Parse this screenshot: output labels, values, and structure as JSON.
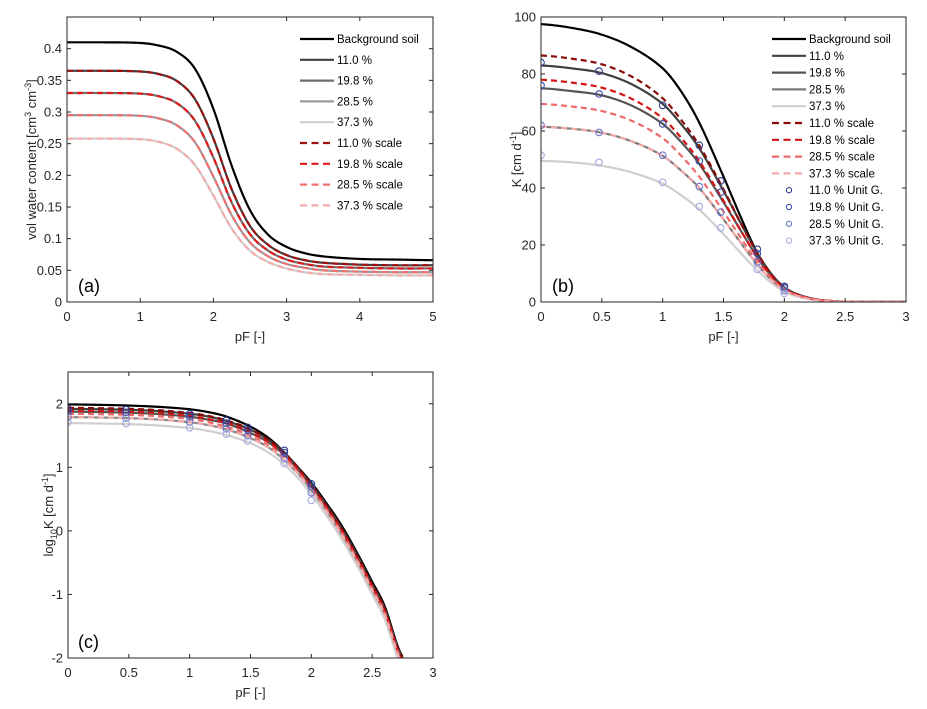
{
  "chart_data": [
    {
      "id": "a",
      "type": "line",
      "panel_label": "(a)",
      "xlabel": "pF [-]",
      "ylabel": "vol water content [cm³ cm⁻³]",
      "ylabel_parts": {
        "pre": "vol water content [cm",
        "sup1": "3",
        "mid": " cm",
        "sup2": "-3",
        "post": "]"
      },
      "xlim": [
        0,
        5
      ],
      "ylim": [
        0,
        0.45
      ],
      "xticks": [
        0,
        1,
        2,
        3,
        4,
        5
      ],
      "xtick_labels": [
        "0",
        "1",
        "2",
        "3",
        "4",
        "5"
      ],
      "yticks": [
        0,
        0.05,
        0.1,
        0.15,
        0.2,
        0.25,
        0.3,
        0.35,
        0.4
      ],
      "ytick_labels": [
        "0",
        "0.05",
        "0.1",
        "0.15",
        "0.2",
        "0.25",
        "0.3",
        "0.35",
        "0.4"
      ],
      "grid": false,
      "legend_position": "top-right",
      "x": [
        0,
        0.5,
        1,
        1.25,
        1.5,
        1.75,
        2,
        2.25,
        2.5,
        2.75,
        3,
        3.25,
        3.5,
        4,
        4.5,
        5
      ],
      "series": [
        {
          "name": "Background soil",
          "style": "solid",
          "color": "#000000",
          "values": [
            0.41,
            0.41,
            0.409,
            0.405,
            0.395,
            0.368,
            0.305,
            0.215,
            0.145,
            0.106,
            0.087,
            0.077,
            0.072,
            0.068,
            0.067,
            0.066
          ]
        },
        {
          "name": "11.0 %",
          "style": "solid",
          "color": "#404040",
          "values": [
            0.365,
            0.365,
            0.364,
            0.36,
            0.349,
            0.32,
            0.258,
            0.178,
            0.12,
            0.09,
            0.074,
            0.066,
            0.062,
            0.059,
            0.058,
            0.058
          ]
        },
        {
          "name": "19.8 %",
          "style": "solid",
          "color": "#6e6e6e",
          "values": [
            0.33,
            0.33,
            0.329,
            0.325,
            0.314,
            0.286,
            0.228,
            0.157,
            0.107,
            0.081,
            0.067,
            0.06,
            0.056,
            0.054,
            0.053,
            0.053
          ]
        },
        {
          "name": "28.5 %",
          "style": "solid",
          "color": "#9a9a9a",
          "values": [
            0.295,
            0.295,
            0.294,
            0.29,
            0.279,
            0.252,
            0.198,
            0.137,
            0.094,
            0.072,
            0.06,
            0.054,
            0.05,
            0.048,
            0.047,
            0.047
          ]
        },
        {
          "name": "37.3 %",
          "style": "solid",
          "color": "#cfcfcf",
          "values": [
            0.258,
            0.258,
            0.257,
            0.253,
            0.242,
            0.216,
            0.168,
            0.116,
            0.081,
            0.063,
            0.053,
            0.047,
            0.044,
            0.043,
            0.042,
            0.042
          ]
        },
        {
          "name": "11.0 % scale",
          "style": "dashed",
          "color": "#a01010",
          "values": [
            0.365,
            0.365,
            0.364,
            0.36,
            0.349,
            0.32,
            0.258,
            0.178,
            0.12,
            0.09,
            0.074,
            0.066,
            0.062,
            0.059,
            0.058,
            0.058
          ]
        },
        {
          "name": "19.8 % scale",
          "style": "dashed",
          "color": "#e01818",
          "values": [
            0.33,
            0.33,
            0.329,
            0.325,
            0.314,
            0.286,
            0.228,
            0.157,
            0.107,
            0.081,
            0.067,
            0.06,
            0.056,
            0.054,
            0.053,
            0.053
          ]
        },
        {
          "name": "28.5 % scale",
          "style": "dashed",
          "color": "#f07070",
          "values": [
            0.295,
            0.295,
            0.294,
            0.29,
            0.279,
            0.252,
            0.198,
            0.137,
            0.094,
            0.072,
            0.06,
            0.054,
            0.05,
            0.048,
            0.047,
            0.047
          ]
        },
        {
          "name": "37.3 % scale",
          "style": "dashed",
          "color": "#f5aaaa",
          "values": [
            0.258,
            0.258,
            0.257,
            0.253,
            0.242,
            0.216,
            0.168,
            0.116,
            0.081,
            0.063,
            0.053,
            0.047,
            0.044,
            0.043,
            0.042,
            0.042
          ]
        }
      ]
    },
    {
      "id": "b",
      "type": "line",
      "panel_label": "(b)",
      "xlabel": "pF [-]",
      "ylabel": "K [cm d⁻¹]",
      "ylabel_parts": {
        "pre": "K [cm d",
        "sup1": "-1",
        "post": "]"
      },
      "xlim": [
        0,
        3
      ],
      "ylim": [
        0,
        100
      ],
      "xticks": [
        0,
        0.5,
        1,
        1.5,
        2,
        2.5,
        3
      ],
      "xtick_labels": [
        "0",
        "0.5",
        "1",
        "1.5",
        "2",
        "2.5",
        "3"
      ],
      "yticks": [
        0,
        20,
        40,
        60,
        80,
        100
      ],
      "ytick_labels": [
        "0",
        "20",
        "40",
        "60",
        "80",
        "100"
      ],
      "grid": false,
      "legend_position": "top-right",
      "x": [
        0,
        0.25,
        0.5,
        0.75,
        1,
        1.15,
        1.3,
        1.5,
        1.65,
        1.78,
        1.9,
        2,
        2.1,
        2.25,
        2.4,
        2.5,
        2.75,
        3
      ],
      "series": [
        {
          "name": "Background soil",
          "style": "solid",
          "color": "#000000",
          "values": [
            97.5,
            96.2,
            93.8,
            89.3,
            82,
            74,
            63,
            44,
            29,
            17,
            9,
            5,
            2.8,
            1,
            0.3,
            0.1,
            0.01,
            0
          ]
        },
        {
          "name": "11.0 %",
          "style": "solid",
          "color": "#404040",
          "values": [
            83,
            82,
            80.3,
            76.3,
            69.5,
            62.5,
            54,
            39,
            27,
            17,
            9.5,
            5.2,
            2.8,
            1,
            0.3,
            0.1,
            0.01,
            0
          ]
        },
        {
          "name": "19.8 %",
          "style": "solid",
          "color": "#555555",
          "values": [
            75,
            74,
            72.5,
            68.8,
            62.5,
            56.2,
            48.5,
            35,
            24.5,
            15.5,
            8.8,
            4.8,
            2.6,
            0.9,
            0.3,
            0.1,
            0.01,
            0
          ]
        },
        {
          "name": "28.5 %",
          "style": "solid",
          "color": "#7a7a7a",
          "values": [
            61.5,
            60.8,
            59.4,
            56.3,
            51.3,
            46.2,
            40,
            29,
            20.3,
            13,
            7.5,
            4.2,
            2.3,
            0.8,
            0.25,
            0.1,
            0.01,
            0
          ]
        },
        {
          "name": "37.3 %",
          "style": "solid",
          "color": "#cfcfcf",
          "values": [
            49.5,
            49,
            47.8,
            45.4,
            41.5,
            37.5,
            32.5,
            23.8,
            16.8,
            11,
            6.5,
            3.6,
            2,
            0.7,
            0.2,
            0.08,
            0.01,
            0
          ]
        },
        {
          "name": "11.0 % scale",
          "style": "dashed",
          "color": "#8b0a0a",
          "values": [
            86.5,
            85.4,
            83.4,
            79,
            71.5,
            64,
            55,
            39.5,
            27,
            17,
            9.3,
            5,
            2.7,
            1,
            0.3,
            0.1,
            0.01,
            0
          ]
        },
        {
          "name": "19.8 % scale",
          "style": "dashed",
          "color": "#d41414",
          "values": [
            78,
            77,
            75.2,
            71.2,
            64.5,
            57.7,
            49.5,
            35.5,
            24.5,
            15.5,
            8.7,
            4.8,
            2.6,
            0.9,
            0.3,
            0.1,
            0.01,
            0
          ]
        },
        {
          "name": "28.5 % scale",
          "style": "dashed",
          "color": "#ee6a6a",
          "values": [
            69.5,
            68.6,
            67,
            63.5,
            57.5,
            51.4,
            44,
            31.7,
            22,
            14,
            8,
            4.4,
            2.4,
            0.85,
            0.27,
            0.1,
            0.01,
            0
          ]
        },
        {
          "name": "37.3 % scale",
          "style": "dashed",
          "color": "#f4a8a8",
          "values": [
            61.5,
            60.8,
            59.4,
            56.3,
            51.3,
            46.2,
            40,
            29,
            20.3,
            13,
            7.5,
            4.2,
            2.3,
            0.8,
            0.25,
            0.1,
            0.01,
            0
          ]
        }
      ],
      "markers": {
        "x": [
          0,
          0.477,
          1,
          1.301,
          1.477,
          1.778,
          2
        ],
        "series": [
          {
            "name": "11.0 % Unit G.",
            "color": "#2e3a8c",
            "values": [
              84,
              81,
              69,
              55,
              42.5,
              18.5,
              5.5
            ]
          },
          {
            "name": "19.8 % Unit G.",
            "color": "#3d4aa8",
            "values": [
              76,
              73,
              62.5,
              49.5,
              38.5,
              17,
              5
            ]
          },
          {
            "name": "28.5 % Unit G.",
            "color": "#6a74c8",
            "values": [
              62,
              59.5,
              51.5,
              40.5,
              31.5,
              14,
              4
            ]
          },
          {
            "name": "37.3 % Unit G.",
            "color": "#a5abe0",
            "values": [
              51.5,
              49,
              42,
              33.5,
              26,
              11.5,
              3
            ]
          }
        ]
      }
    },
    {
      "id": "c",
      "type": "line",
      "panel_label": "(c)",
      "xlabel": "pF [-]",
      "ylabel": "log₁₀K [cm d⁻¹]",
      "ylabel_parts": {
        "pre": "log",
        "sub": "10",
        "mid": "K [cm d",
        "sup1": "-1",
        "post": "]"
      },
      "xlim": [
        0,
        3
      ],
      "ylim": [
        -2,
        2.5
      ],
      "xticks": [
        0,
        0.5,
        1,
        1.5,
        2,
        2.5,
        3
      ],
      "xtick_labels": [
        "0",
        "0.5",
        "1",
        "1.5",
        "2",
        "2.5",
        "3"
      ],
      "yticks": [
        -2,
        -1,
        0,
        1,
        2
      ],
      "ytick_labels": [
        "-2",
        "-1",
        "0",
        "1",
        "2"
      ],
      "grid": false,
      "legend_position": "none",
      "x": [
        0,
        0.25,
        0.5,
        0.75,
        1,
        1.15,
        1.3,
        1.5,
        1.65,
        1.78,
        1.9,
        2,
        2.1,
        2.25,
        2.4,
        2.5,
        2.6,
        2.75
      ],
      "series": [
        {
          "name": "Background soil",
          "style": "solid",
          "color": "#000000",
          "values": [
            1.99,
            1.983,
            1.972,
            1.951,
            1.914,
            1.87,
            1.8,
            1.64,
            1.46,
            1.23,
            0.98,
            0.76,
            0.5,
            0.08,
            -0.43,
            -0.8,
            -1.17,
            -1.98
          ]
        },
        {
          "name": "11.0 %",
          "style": "solid",
          "color": "#404040",
          "values": [
            1.919,
            1.914,
            1.905,
            1.883,
            1.842,
            1.8,
            1.73,
            1.59,
            1.43,
            1.22,
            0.97,
            0.73,
            0.47,
            0.04,
            -0.47,
            -0.84,
            -1.21,
            -2.0
          ]
        },
        {
          "name": "19.8 %",
          "style": "solid",
          "color": "#555555",
          "values": [
            1.875,
            1.87,
            1.86,
            1.838,
            1.796,
            1.75,
            1.69,
            1.54,
            1.39,
            1.19,
            0.94,
            0.7,
            0.44,
            0.0,
            -0.5,
            -0.87,
            -1.24,
            -2.03
          ]
        },
        {
          "name": "28.5 %",
          "style": "solid",
          "color": "#8a8a8a",
          "values": [
            1.789,
            1.784,
            1.774,
            1.751,
            1.71,
            1.665,
            1.6,
            1.46,
            1.31,
            1.11,
            0.88,
            0.64,
            0.38,
            -0.06,
            -0.56,
            -0.93,
            -1.3,
            -2.09
          ]
        },
        {
          "name": "37.3 %",
          "style": "solid",
          "color": "#cfcfcf",
          "values": [
            1.695,
            1.69,
            1.68,
            1.657,
            1.618,
            1.574,
            1.51,
            1.38,
            1.23,
            1.04,
            0.81,
            0.57,
            0.31,
            -0.13,
            -0.63,
            -1.0,
            -1.37,
            -2.16
          ]
        },
        {
          "name": "11.0 % scale",
          "style": "dashed",
          "color": "#8b0a0a",
          "values": [
            1.937,
            1.931,
            1.921,
            1.898,
            1.854,
            1.81,
            1.74,
            1.6,
            1.43,
            1.22,
            0.97,
            0.72,
            0.46,
            0.03,
            -0.48,
            -0.85,
            -1.22,
            -2.01
          ]
        },
        {
          "name": "19.8 % scale",
          "style": "dashed",
          "color": "#d41414",
          "values": [
            1.892,
            1.886,
            1.876,
            1.852,
            1.81,
            1.76,
            1.7,
            1.55,
            1.39,
            1.19,
            0.94,
            0.7,
            0.44,
            0.0,
            -0.51,
            -0.88,
            -1.25,
            -2.04
          ]
        },
        {
          "name": "28.5 % scale",
          "style": "dashed",
          "color": "#ee6a6a",
          "values": [
            1.842,
            1.836,
            1.826,
            1.803,
            1.76,
            1.71,
            1.64,
            1.5,
            1.34,
            1.15,
            0.9,
            0.66,
            0.4,
            -0.03,
            -0.54,
            -0.91,
            -1.28,
            -2.07
          ]
        },
        {
          "name": "37.3 % scale",
          "style": "dashed",
          "color": "#f4a8a8",
          "values": [
            1.789,
            1.784,
            1.774,
            1.751,
            1.71,
            1.665,
            1.6,
            1.46,
            1.31,
            1.11,
            0.88,
            0.64,
            0.38,
            -0.06,
            -0.56,
            -0.93,
            -1.3,
            -2.09
          ]
        }
      ],
      "markers": {
        "x": [
          0,
          0.477,
          1,
          1.301,
          1.477,
          1.778,
          2
        ],
        "series": [
          {
            "name": "11.0 % Unit G.",
            "color": "#2e3a8c",
            "values": [
              1.924,
              1.908,
              1.839,
              1.74,
              1.628,
              1.267,
              0.74
            ]
          },
          {
            "name": "19.8 % Unit G.",
            "color": "#3d4aa8",
            "values": [
              1.881,
              1.863,
              1.796,
              1.695,
              1.585,
              1.23,
              0.7
            ]
          },
          {
            "name": "28.5 % Unit G.",
            "color": "#6a74c8",
            "values": [
              1.792,
              1.775,
              1.712,
              1.607,
              1.498,
              1.146,
              0.6
            ]
          },
          {
            "name": "37.3 % Unit G.",
            "color": "#a5abe0",
            "values": [
              1.712,
              1.69,
              1.623,
              1.525,
              1.415,
              1.06,
              0.48
            ]
          }
        ]
      }
    }
  ]
}
